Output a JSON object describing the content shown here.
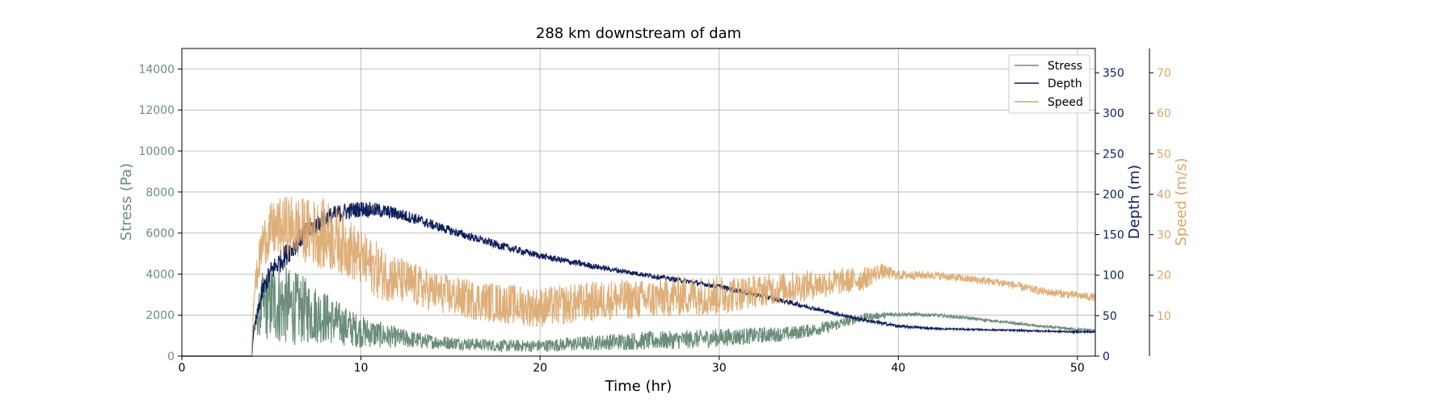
{
  "chart_data": {
    "type": "line",
    "title": "288 km downstream of dam",
    "xlabel": "Time (hr)",
    "xlim": [
      0,
      51
    ],
    "xticks": [
      0,
      10,
      20,
      30,
      40,
      50
    ],
    "grid": true,
    "legend_placement": "top-right",
    "axes": {
      "stress": {
        "label": "Stress (Pa)",
        "ylim": [
          0,
          15000
        ],
        "ticks": [
          0,
          2000,
          4000,
          6000,
          8000,
          10000,
          12000,
          14000
        ],
        "color": "#6b8e7a"
      },
      "depth": {
        "label": "Depth (m)",
        "ylim": [
          0,
          380
        ],
        "ticks": [
          0,
          50,
          100,
          150,
          200,
          250,
          300,
          350
        ],
        "color": "#0f1f5c"
      },
      "speed": {
        "label": "Speed (m/s)",
        "ylim": [
          0,
          76
        ],
        "ticks": [
          10,
          20,
          30,
          40,
          50,
          60,
          70
        ],
        "color": "#dba66a"
      }
    },
    "series": [
      {
        "name": "Stress",
        "axis": "stress",
        "color": "#6b8e7a",
        "x": [
          0,
          3.9,
          4.0,
          4.5,
          5,
          6,
          7,
          8,
          9,
          10,
          12,
          14,
          16,
          18,
          20,
          22,
          24,
          26,
          28,
          30,
          32,
          34,
          36,
          38,
          40,
          42,
          44,
          46,
          48,
          50,
          51
        ],
        "y": [
          0,
          0,
          1200,
          2500,
          2600,
          2400,
          2200,
          1900,
          1500,
          1200,
          900,
          700,
          600,
          500,
          500,
          600,
          700,
          750,
          800,
          900,
          1000,
          1100,
          1400,
          1900,
          2050,
          2000,
          1850,
          1650,
          1450,
          1300,
          1250
        ],
        "noise": [
          0,
          0,
          200,
          1600,
          2000,
          1900,
          1600,
          1300,
          1000,
          800,
          500,
          350,
          300,
          300,
          300,
          350,
          400,
          450,
          450,
          450,
          400,
          350,
          300,
          200,
          100,
          80,
          70,
          60,
          60,
          60,
          60
        ]
      },
      {
        "name": "Depth",
        "axis": "depth",
        "color": "#0f1f5c",
        "x": [
          0,
          3.9,
          4.0,
          4.5,
          5,
          6,
          7,
          8,
          9,
          10,
          11,
          12,
          13,
          14,
          16,
          18,
          20,
          22,
          24,
          26,
          28,
          30,
          32,
          34,
          36,
          38,
          40,
          42,
          44,
          46,
          48,
          50,
          51
        ],
        "y": [
          0,
          0,
          30,
          80,
          105,
          130,
          155,
          170,
          178,
          182,
          180,
          176,
          170,
          162,
          148,
          135,
          124,
          115,
          107,
          100,
          93,
          86,
          76,
          66,
          55,
          45,
          37,
          34,
          33,
          32,
          31,
          30,
          30
        ],
        "noise": [
          0,
          0,
          5,
          12,
          14,
          14,
          13,
          12,
          11,
          10,
          9,
          8,
          7,
          6,
          5,
          5,
          4,
          4,
          3,
          3,
          3,
          3,
          3,
          3,
          2,
          2,
          2,
          1,
          1,
          1,
          1,
          1,
          1
        ]
      },
      {
        "name": "Speed",
        "axis": "speed",
        "color": "#dba66a",
        "x": [
          0,
          3.9,
          4.0,
          4.5,
          5,
          6,
          7,
          8,
          9,
          10,
          11,
          12,
          14,
          16,
          18,
          20,
          22,
          24,
          26,
          28,
          30,
          32,
          34,
          36,
          38,
          39,
          40,
          42,
          44,
          46,
          48,
          50,
          51
        ],
        "y": [
          0,
          0,
          15,
          28,
          31,
          32,
          31,
          30,
          28,
          24,
          21,
          19,
          16,
          14,
          13,
          12,
          13,
          14,
          14,
          15,
          15,
          16,
          17,
          18,
          19,
          21,
          20,
          20,
          19,
          18,
          16,
          15,
          14.5
        ],
        "noise": [
          0,
          0,
          3,
          6,
          7,
          8,
          8,
          9,
          8,
          7,
          7,
          6,
          5,
          5,
          5,
          5,
          5,
          5,
          5,
          5,
          5,
          4,
          4,
          3.5,
          3,
          2,
          1.2,
          1,
          1,
          1,
          1,
          1,
          1
        ]
      }
    ]
  }
}
